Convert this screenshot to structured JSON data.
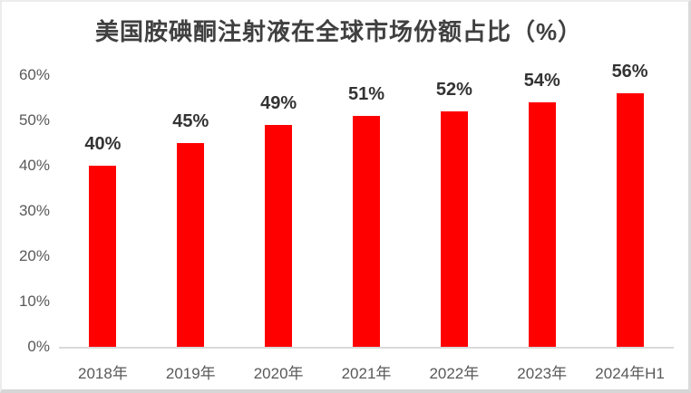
{
  "chart_data": {
    "type": "bar",
    "title": "美国胺碘酮注射液在全球市场份额占比（%）",
    "categories": [
      "2018年",
      "2019年",
      "2020年",
      "2021年",
      "2022年",
      "2023年",
      "2024年H1"
    ],
    "values": [
      40,
      45,
      49,
      51,
      52,
      54,
      56
    ],
    "value_labels": [
      "40%",
      "45%",
      "49%",
      "51%",
      "52%",
      "54%",
      "56%"
    ],
    "y_ticks": [
      "0%",
      "10%",
      "20%",
      "30%",
      "40%",
      "50%",
      "60%"
    ],
    "ylim": [
      0,
      60
    ],
    "grid": false,
    "legend": "none",
    "xlabel": "",
    "ylabel": "",
    "colors": {
      "bar": "#FF0000",
      "title": "#404040",
      "value_label": "#333333",
      "axis_label": "#595959",
      "baseline": "#D9D9D9"
    }
  }
}
